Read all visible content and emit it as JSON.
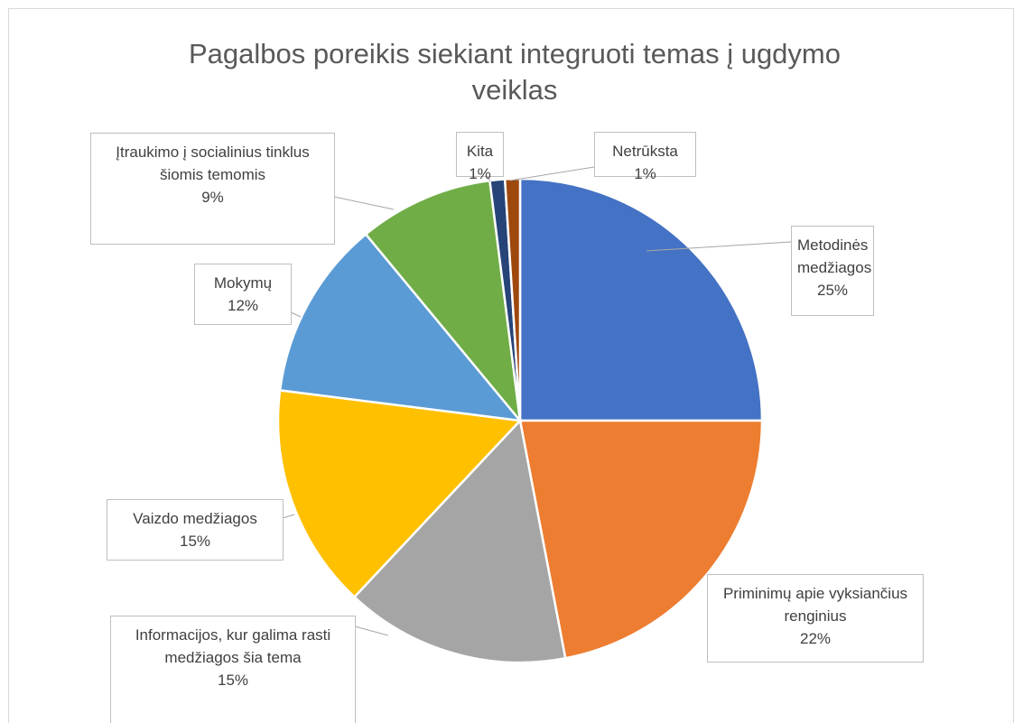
{
  "chart_data": {
    "type": "pie",
    "title": "Pagalbos poreikis siekiant integruoti temas į ugdymo veiklas",
    "categories": [
      "Metodinės medžiagos",
      "Priminimų apie vyksiančius renginius",
      "Informacijos, kur galima rasti medžiagos šia tema",
      "Vaizdo medžiagos",
      "Mokymų",
      "Įtraukimo į socialinius tinklus šiomis temomis",
      "Kita",
      "Netrūksta"
    ],
    "values": [
      25,
      22,
      15,
      15,
      12,
      9,
      1,
      1
    ],
    "value_labels": [
      "25%",
      "22%",
      "15%",
      "15%",
      "12%",
      "9%",
      "1%",
      "1%"
    ],
    "colors": [
      "#4472c4",
      "#ed7d31",
      "#a5a5a5",
      "#ffc000",
      "#5b9bd5",
      "#70ad47",
      "#264478",
      "#9e480e"
    ]
  }
}
